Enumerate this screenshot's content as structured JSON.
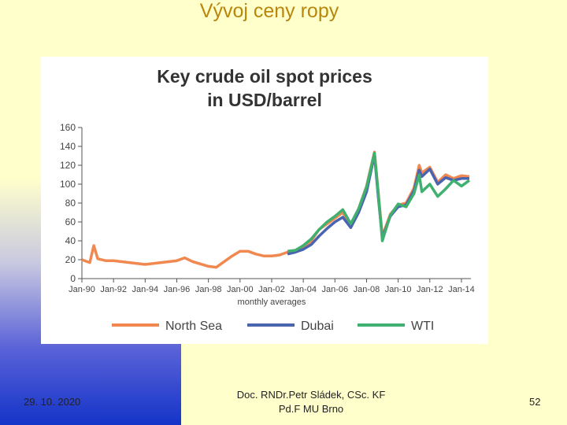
{
  "slide": {
    "title": "Vývoj ceny ropy",
    "footer_date": "29. 10. 2020",
    "footer_author_line1": "Doc. RNDr.Petr Sládek, CSc. KF",
    "footer_author_line2": "Pd.F MU Brno",
    "page_number": "52"
  },
  "colors": {
    "north_sea": "#f08850",
    "dubai": "#4a64b0",
    "wti": "#40b070"
  },
  "chart_data": {
    "type": "line",
    "title_line1": "Key crude oil spot prices",
    "title_line2": "in USD/barrel",
    "xlabel": "monthly averages",
    "ylim": [
      0,
      160
    ],
    "yticks": [
      "0",
      "20",
      "40",
      "60",
      "80",
      "100",
      "120",
      "140",
      "160"
    ],
    "xticks": [
      "Jan-90",
      "Jan-92",
      "Jan-94",
      "Jan-96",
      "Jan-98",
      "Jan-00",
      "Jan-02",
      "Jan-04",
      "Jan-06",
      "Jan-08",
      "Jan-10",
      "Jan-12",
      "Jan-14"
    ],
    "legend": [
      "North Sea",
      "Dubai",
      "WTI"
    ],
    "legend_position": "bottom",
    "series": [
      {
        "name": "North Sea",
        "x": [
          1990,
          1990.5,
          1990.75,
          1991,
          1991.5,
          1992,
          1993,
          1994,
          1995,
          1996,
          1996.5,
          1997,
          1998,
          1998.5,
          1999,
          1999.5,
          2000,
          2000.5,
          2001,
          2001.5,
          2002,
          2002.5,
          2003,
          2003.5,
          2004,
          2004.5,
          2005,
          2005.5,
          2006,
          2006.5,
          2007,
          2007.5,
          2008,
          2008.5,
          2008.75,
          2009,
          2009.5,
          2010,
          2010.5,
          2011,
          2011.33,
          2011.5,
          2012,
          2012.5,
          2013,
          2013.5,
          2014,
          2014.5
        ],
        "values": [
          20,
          17,
          35,
          21,
          19,
          19,
          17,
          15,
          17,
          19,
          22,
          18,
          13,
          12,
          18,
          24,
          29,
          29,
          26,
          24,
          24,
          25,
          28,
          29,
          33,
          40,
          52,
          58,
          64,
          70,
          55,
          74,
          98,
          134,
          90,
          45,
          68,
          78,
          80,
          96,
          120,
          112,
          118,
          102,
          110,
          106,
          109,
          108
        ]
      },
      {
        "name": "Dubai",
        "x": [
          2003,
          2003.5,
          2004,
          2004.5,
          2005,
          2005.5,
          2006,
          2006.5,
          2007,
          2007.5,
          2008,
          2008.5,
          2008.75,
          2009,
          2009.5,
          2010,
          2010.5,
          2011,
          2011.33,
          2011.5,
          2012,
          2012.5,
          2013,
          2013.5,
          2014,
          2014.5
        ],
        "values": [
          26,
          28,
          31,
          36,
          45,
          53,
          60,
          65,
          54,
          70,
          92,
          131,
          85,
          43,
          66,
          76,
          78,
          93,
          115,
          108,
          116,
          100,
          107,
          104,
          106,
          106
        ]
      },
      {
        "name": "WTI",
        "x": [
          2003,
          2003.5,
          2004,
          2004.5,
          2005,
          2005.5,
          2006,
          2006.5,
          2007,
          2007.5,
          2008,
          2008.5,
          2008.75,
          2009,
          2009.5,
          2010,
          2010.5,
          2011,
          2011.33,
          2011.5,
          2012,
          2012.5,
          2013,
          2013.5,
          2014,
          2014.5
        ],
        "values": [
          29,
          30,
          35,
          42,
          52,
          60,
          66,
          73,
          58,
          74,
          97,
          133,
          89,
          40,
          67,
          79,
          76,
          90,
          110,
          92,
          100,
          87,
          95,
          104,
          98,
          104
        ]
      }
    ]
  }
}
